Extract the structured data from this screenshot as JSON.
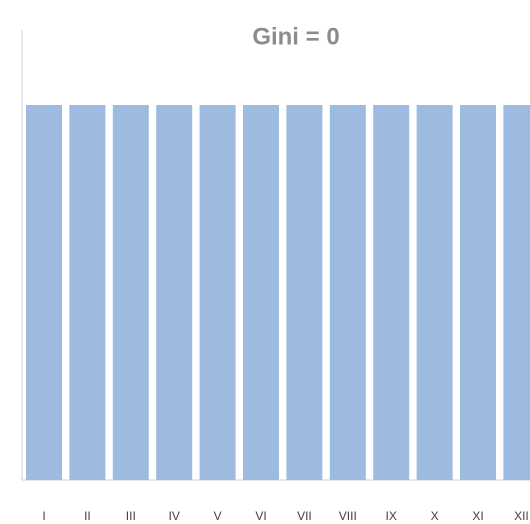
{
  "chart_data": {
    "type": "bar",
    "title": "Gini = 0",
    "categories": [
      "I",
      "II",
      "III",
      "IV",
      "V",
      "VI",
      "VII",
      "VIII",
      "IX",
      "X",
      "XI",
      "XII"
    ],
    "values": [
      10,
      10,
      10,
      10,
      10,
      10,
      10,
      10,
      10,
      10,
      10,
      10
    ],
    "color": "#9dbbe0",
    "ylim": [
      0,
      12
    ]
  }
}
